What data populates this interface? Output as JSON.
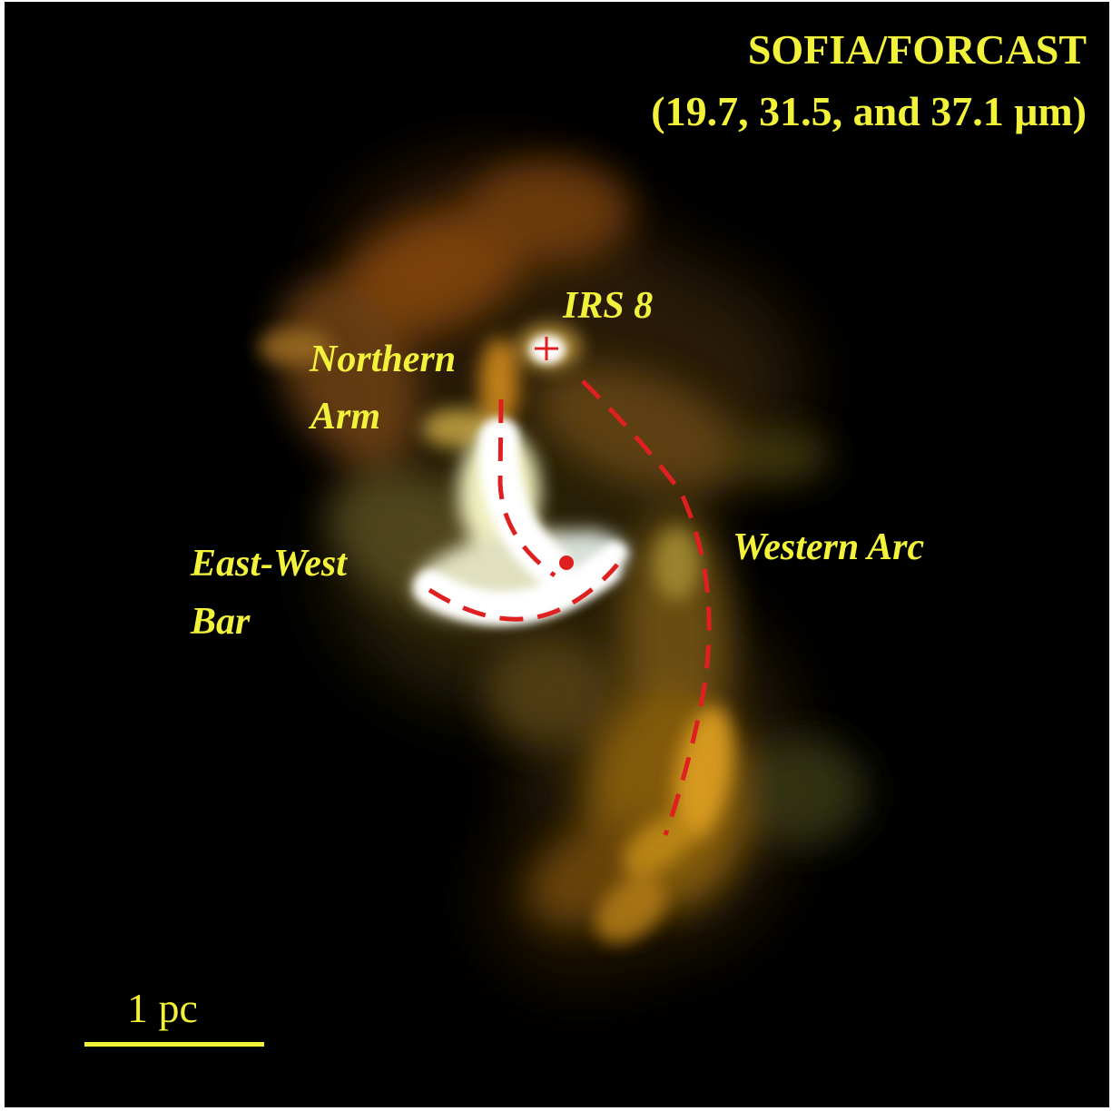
{
  "image": {
    "title_line1": "SOFIA/FORCAST",
    "title_line2": "(19.7, 31.5, and 37.1 μm)",
    "labels": {
      "irs8": "IRS 8",
      "northern_arm_line1": "Northern",
      "northern_arm_line2": "Arm",
      "east_west_bar_line1": "East-West",
      "east_west_bar_line2": "Bar",
      "western_arc": "Western Arc"
    },
    "scale_bar_label": "1 pc"
  },
  "colors": {
    "label_yellow": "#f2f23a",
    "marker_red": "#e02020",
    "background": "#000000"
  }
}
